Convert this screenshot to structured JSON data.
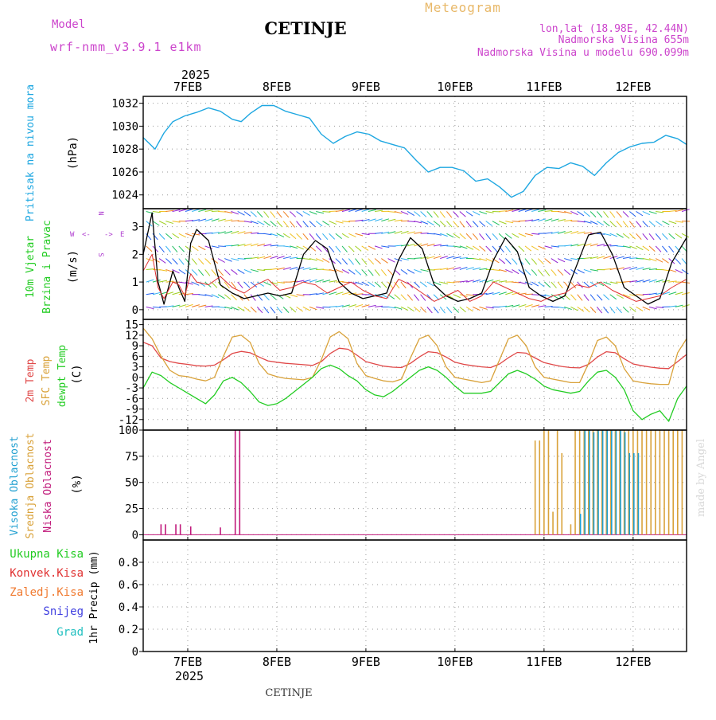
{
  "header": {
    "title": "CETINJE",
    "meteogram_label": "Meteogram",
    "model_label": "Model",
    "model_name": "wrf-nmm_v3.9.1 e1km",
    "location_line": "lon,lat (18.98E, 42.44N)",
    "elevation_line": "Nadmorska Visina 655m",
    "model_elevation_line": "Nadmorska Visina u modelu 690.099m",
    "year": "2025",
    "footer_station": "CETINJE",
    "credit": "made by Angel"
  },
  "colors": {
    "pressure": "#1ea7e1",
    "wind_speed": "#000000",
    "gust": "#e03030",
    "t2m": "#e04848",
    "sfc": "#d9a23a",
    "dewpt": "#22cc22",
    "high_cloud": "#1f9fd0",
    "mid_cloud": "#d9a23a",
    "low_cloud": "#c0187a",
    "total_precip": "#22cc22",
    "conv_precip": "#e03030",
    "frozen_precip": "#f07a30",
    "snow": "#4040e0",
    "graupel": "#22c0c0",
    "legend_title": "#cc44cc",
    "meteogram_label": "#e8b868",
    "wind_compass": "#b040d0"
  },
  "chart_data": [
    {
      "panel": "pressure",
      "type": "line",
      "ylabel_name": "Pritisak na nivou mora",
      "ylabel_unit": "(hPa)",
      "ylim": [
        1022.8,
        1032.6
      ],
      "yticks": [
        "1024",
        "1026",
        "1028",
        "1030",
        "1032"
      ],
      "grid": true,
      "x_hours": [
        0,
        2,
        4,
        7,
        10,
        14,
        18,
        22,
        26,
        30,
        33,
        36,
        40,
        44,
        48,
        52,
        56,
        60,
        64,
        68,
        72,
        76,
        80,
        84,
        88,
        92,
        96,
        100,
        104,
        108,
        112,
        116,
        120,
        124,
        128,
        132,
        136,
        140,
        144,
        148,
        152,
        156,
        160,
        164,
        168,
        172,
        176,
        180,
        183
      ],
      "series": [
        {
          "values": [
            1029.0,
            1028.5,
            1028.0,
            1029.4,
            1030.4,
            1030.9,
            1031.2,
            1031.6,
            1031.3,
            1030.6,
            1030.4,
            1031.1,
            1031.8,
            1031.8,
            1031.3,
            1031.0,
            1030.7,
            1029.3,
            1028.5,
            1029.1,
            1029.5,
            1029.3,
            1028.7,
            1028.4,
            1028.1,
            1027.0,
            1026.0,
            1026.4,
            1026.4,
            1026.1,
            1025.2,
            1025.4,
            1024.7,
            1023.8,
            1024.3,
            1025.7,
            1026.4,
            1026.3,
            1026.8,
            1026.5,
            1025.7,
            1026.8,
            1027.7,
            1028.2,
            1028.5,
            1028.6,
            1029.2,
            1028.9,
            1028.4
          ]
        }
      ]
    },
    {
      "panel": "wind",
      "type": "line",
      "ylabel_name": "10m Vjetar",
      "ylabel_sub": "Brzina i Pravac",
      "ylabel_unit": "(m/s)",
      "compass": [
        "N",
        "W",
        "E",
        "S",
        "<-",
        "->"
      ],
      "ylim": [
        -0.35,
        3.65
      ],
      "yticks": [
        "0",
        "1",
        "2",
        "3"
      ],
      "grid": true,
      "x_hours": [
        0,
        3,
        5,
        7,
        10,
        12,
        14,
        16,
        18,
        22,
        26,
        30,
        34,
        38,
        42,
        46,
        50,
        54,
        58,
        62,
        66,
        70,
        74,
        78,
        82,
        86,
        90,
        94,
        98,
        102,
        106,
        110,
        114,
        118,
        122,
        126,
        130,
        134,
        138,
        142,
        146,
        150,
        154,
        158,
        162,
        166,
        170,
        174,
        178,
        183
      ],
      "series": [
        {
          "name": "speed",
          "values": [
            2.0,
            3.5,
            1.0,
            0.2,
            1.4,
            0.8,
            0.3,
            2.4,
            2.9,
            2.5,
            0.9,
            0.6,
            0.4,
            0.5,
            0.6,
            0.5,
            0.6,
            2.0,
            2.5,
            2.2,
            1.0,
            0.6,
            0.4,
            0.5,
            0.6,
            1.8,
            2.6,
            2.2,
            0.9,
            0.5,
            0.3,
            0.4,
            0.6,
            1.8,
            2.6,
            2.1,
            0.8,
            0.5,
            0.3,
            0.5,
            1.6,
            2.7,
            2.8,
            2.0,
            0.8,
            0.5,
            0.2,
            0.4,
            1.7,
            2.6
          ]
        },
        {
          "name": "gust",
          "values": [
            1.4,
            2.0,
            0.8,
            0.4,
            1.0,
            0.9,
            0.5,
            1.3,
            1.0,
            0.9,
            1.2,
            0.8,
            0.6,
            0.9,
            1.1,
            0.7,
            0.8,
            1.0,
            0.9,
            0.6,
            0.8,
            1.0,
            0.7,
            0.5,
            0.4,
            1.1,
            0.9,
            0.6,
            0.3,
            0.5,
            0.7,
            0.3,
            0.5,
            1.0,
            0.8,
            0.6,
            0.4,
            0.3,
            0.5,
            0.6,
            0.9,
            0.8,
            1.0,
            0.7,
            0.5,
            0.3,
            0.4,
            0.5,
            0.8,
            1.1
          ]
        }
      ]
    },
    {
      "panel": "temperature",
      "type": "line",
      "ylabel_t2m": "2m Temp",
      "ylabel_sfc": "SFC Temp",
      "ylabel_dew": "dewpt Temp",
      "ylabel_unit": "(C)",
      "ylim": [
        -15,
        16.5
      ],
      "yticks": [
        "15",
        "12",
        "9",
        "6",
        "3",
        "0",
        "-3",
        "-6",
        "-9",
        "-12"
      ],
      "grid": true,
      "x_hours": [
        0,
        3,
        6,
        9,
        12,
        15,
        18,
        21,
        24,
        27,
        30,
        33,
        36,
        39,
        42,
        45,
        48,
        51,
        54,
        57,
        60,
        63,
        66,
        69,
        72,
        75,
        78,
        81,
        84,
        87,
        90,
        93,
        96,
        99,
        102,
        105,
        108,
        111,
        114,
        117,
        120,
        123,
        126,
        129,
        132,
        135,
        138,
        141,
        144,
        147,
        150,
        153,
        156,
        159,
        162,
        165,
        168,
        171,
        174,
        177,
        180,
        183
      ],
      "series": [
        {
          "name": "2m",
          "values": [
            10.0,
            9.0,
            5.5,
            4.5,
            4.0,
            3.7,
            3.3,
            3.2,
            3.5,
            5.0,
            6.8,
            7.4,
            7.0,
            5.8,
            4.7,
            4.3,
            4.0,
            3.8,
            3.6,
            3.4,
            4.5,
            6.8,
            8.3,
            8.0,
            6.3,
            4.5,
            3.8,
            3.2,
            2.9,
            2.8,
            4.0,
            5.8,
            7.3,
            7.0,
            5.8,
            4.3,
            3.7,
            3.3,
            3.0,
            2.8,
            3.8,
            5.6,
            7.1,
            6.9,
            5.5,
            4.2,
            3.6,
            3.1,
            2.8,
            2.7,
            3.7,
            5.8,
            7.3,
            7.0,
            5.3,
            3.8,
            3.3,
            2.9,
            2.6,
            2.5,
            4.5,
            6.5
          ]
        },
        {
          "name": "sfc",
          "values": [
            14.0,
            11.0,
            6.0,
            2.0,
            0.5,
            0.2,
            -0.5,
            -1.0,
            0.0,
            6.0,
            11.5,
            12.0,
            10.0,
            4.0,
            1.0,
            0.2,
            -0.3,
            -0.5,
            -0.7,
            0.0,
            5.0,
            11.5,
            13.0,
            11.0,
            4.0,
            0.5,
            -0.3,
            -1.0,
            -1.3,
            -0.5,
            5.5,
            11.0,
            12.0,
            9.0,
            3.0,
            0.0,
            -0.5,
            -1.0,
            -1.5,
            -1.0,
            5.0,
            11.0,
            12.0,
            9.0,
            3.0,
            0.0,
            -0.5,
            -1.0,
            -1.5,
            -1.5,
            4.0,
            10.5,
            11.5,
            9.0,
            2.5,
            -1.0,
            -1.5,
            -1.8,
            -2.0,
            -2.0,
            7.0,
            11.0
          ]
        },
        {
          "name": "dewpt",
          "values": [
            -3.0,
            1.5,
            0.5,
            -1.5,
            -3.0,
            -4.5,
            -6.0,
            -7.5,
            -5.0,
            -1.0,
            0.0,
            -1.5,
            -4.0,
            -7.0,
            -8.0,
            -7.5,
            -6.0,
            -4.0,
            -2.0,
            0.0,
            2.5,
            3.5,
            2.5,
            0.5,
            -1.0,
            -3.5,
            -5.0,
            -5.5,
            -4.0,
            -2.0,
            0.0,
            2.0,
            3.0,
            2.0,
            0.0,
            -2.5,
            -4.5,
            -4.5,
            -4.5,
            -4.0,
            -1.5,
            1.0,
            2.0,
            1.0,
            -0.5,
            -2.5,
            -3.5,
            -4.0,
            -4.5,
            -4.0,
            -1.0,
            1.5,
            2.0,
            0.0,
            -3.5,
            -9.5,
            -12.0,
            -10.5,
            -9.5,
            -12.5,
            -6.0,
            -2.5
          ]
        }
      ]
    },
    {
      "panel": "cloud",
      "type": "bar",
      "ylabel_high": "Visoka Oblacnost",
      "ylabel_mid": "Srednja Oblacnost",
      "ylabel_low": "Niska Oblacnost",
      "ylabel_unit": "(%)",
      "ylim": [
        -5,
        100
      ],
      "yticks": [
        "0",
        "25",
        "50",
        "75",
        "100"
      ],
      "grid": true,
      "series": [
        {
          "name": "low",
          "points": [
            [
              6,
              10
            ],
            [
              7.5,
              10
            ],
            [
              11,
              10
            ],
            [
              12.5,
              10
            ],
            [
              16,
              8
            ],
            [
              26,
              7
            ],
            [
              31,
              100
            ],
            [
              32.5,
              100
            ]
          ]
        },
        {
          "name": "mid",
          "points": [
            [
              132,
              90
            ],
            [
              133.5,
              90
            ],
            [
              135,
              100
            ],
            [
              136.5,
              100
            ],
            [
              138,
              22
            ],
            [
              139.5,
              100
            ],
            [
              141,
              78
            ],
            [
              144,
              10
            ],
            [
              145.5,
              100
            ],
            [
              147,
              100
            ],
            [
              148.5,
              100
            ],
            [
              150,
              100
            ],
            [
              151.5,
              100
            ],
            [
              153,
              100
            ],
            [
              154.5,
              100
            ],
            [
              156,
              100
            ],
            [
              157.5,
              100
            ],
            [
              159,
              100
            ],
            [
              160.5,
              100
            ],
            [
              162,
              100
            ],
            [
              163.5,
              100
            ],
            [
              165,
              100
            ],
            [
              166.5,
              100
            ],
            [
              168,
              100
            ],
            [
              169.5,
              100
            ],
            [
              171,
              100
            ],
            [
              172.5,
              100
            ],
            [
              174,
              100
            ],
            [
              175.5,
              100
            ],
            [
              177,
              100
            ],
            [
              178.5,
              100
            ],
            [
              180,
              100
            ],
            [
              181.5,
              100
            ]
          ]
        },
        {
          "name": "high",
          "points": [
            [
              147,
              20
            ],
            [
              148.5,
              100
            ],
            [
              150,
              100
            ],
            [
              151.5,
              98
            ],
            [
              153,
              100
            ],
            [
              154.5,
              100
            ],
            [
              156,
              100
            ],
            [
              157.5,
              100
            ],
            [
              159,
              100
            ],
            [
              160.5,
              100
            ],
            [
              162,
              98
            ],
            [
              163.5,
              78
            ],
            [
              165,
              78
            ],
            [
              166.5,
              78
            ]
          ]
        }
      ]
    },
    {
      "panel": "precip",
      "type": "line",
      "legend": [
        "Ukupna Kisa",
        "Konvek.Kisa",
        "Zaledj.Kisa",
        "Snijeg",
        "Grad"
      ],
      "ylabel_unit": "1hr Precip (mm)",
      "ylim": [
        0,
        1
      ],
      "yticks": [
        "0",
        "0.2",
        "0.4",
        "0.6",
        "0.8"
      ],
      "grid": true,
      "series": [
        {
          "name": "Ukupna Kisa",
          "values": []
        },
        {
          "name": "Konvek.Kisa",
          "values": []
        },
        {
          "name": "Zaledj.Kisa",
          "values": []
        },
        {
          "name": "Snijeg",
          "values": []
        },
        {
          "name": "Grad",
          "values": []
        }
      ]
    }
  ],
  "x_axis": {
    "range_hours": [
      0,
      183
    ],
    "date_labels": [
      "7FEB",
      "8FEB",
      "9FEB",
      "10FEB",
      "11FEB",
      "12FEB"
    ],
    "date_hours": [
      15,
      45,
      75,
      105,
      135,
      165
    ]
  }
}
